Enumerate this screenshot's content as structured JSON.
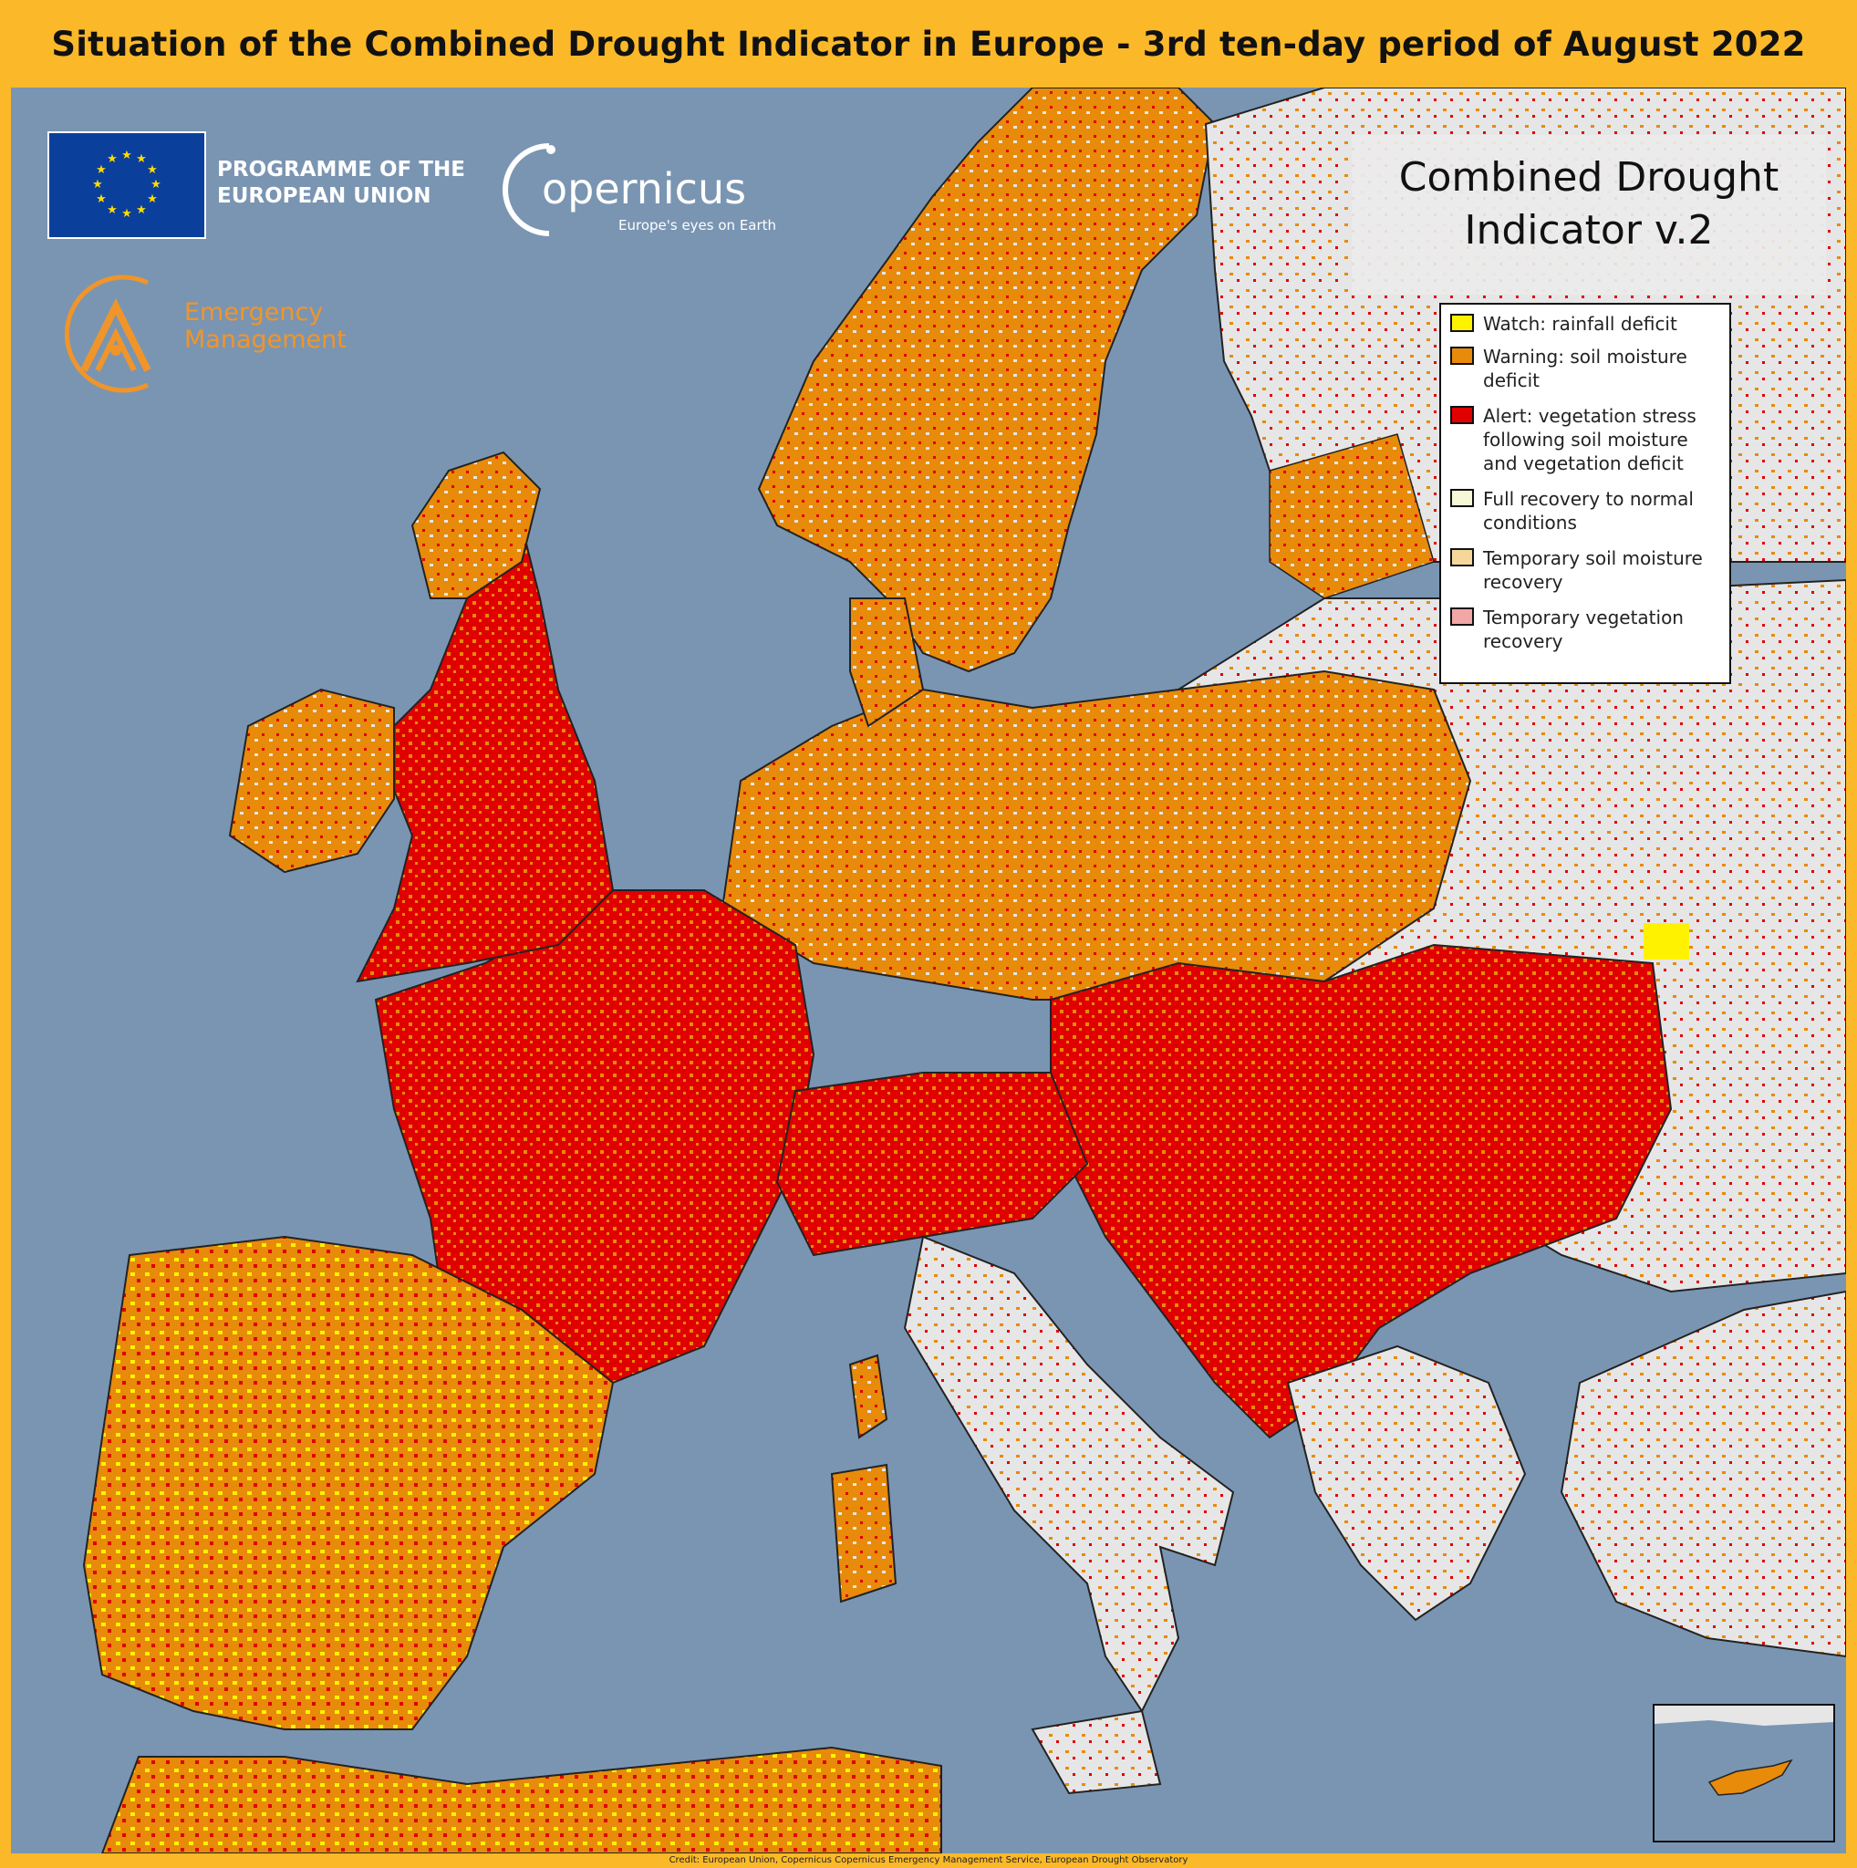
{
  "title": "Situation of the Combined Drought Indicator in Europe - 3rd ten-day period of August 2022",
  "logos": {
    "eu_programme_line1": "PROGRAMME OF THE",
    "eu_programme_line2": "EUROPEAN UNION",
    "copernicus_name": "opernicus",
    "copernicus_tagline": "Europe's eyes on Earth",
    "emergency_line1": "Emergency",
    "emergency_line2": "Management"
  },
  "map_title": {
    "line1": "Combined Drought",
    "line2": "Indicator v.2"
  },
  "legend": {
    "items": [
      {
        "label": "Watch: rainfall deficit",
        "color": "#fff200"
      },
      {
        "label": "Warning: soil moisture deficit",
        "color": "#e88a0a"
      },
      {
        "label": "Alert: vegetation stress following soil moisture and vegetation deficit",
        "color": "#e00000"
      },
      {
        "label": "Full recovery to normal conditions",
        "color": "#f7f8d8"
      },
      {
        "label": "Temporary soil moisture recovery",
        "color": "#f5d79a"
      },
      {
        "label": "Temporary vegetation recovery",
        "color": "#f2a6a6"
      }
    ]
  },
  "colors": {
    "sea": "#7a95b2",
    "land_no_data": "#e6e6e6",
    "frame": "#fbb829"
  },
  "credit": "Credit: European Union, Copernicus  Copernicus Emergency Management Service, European Drought Observatory"
}
